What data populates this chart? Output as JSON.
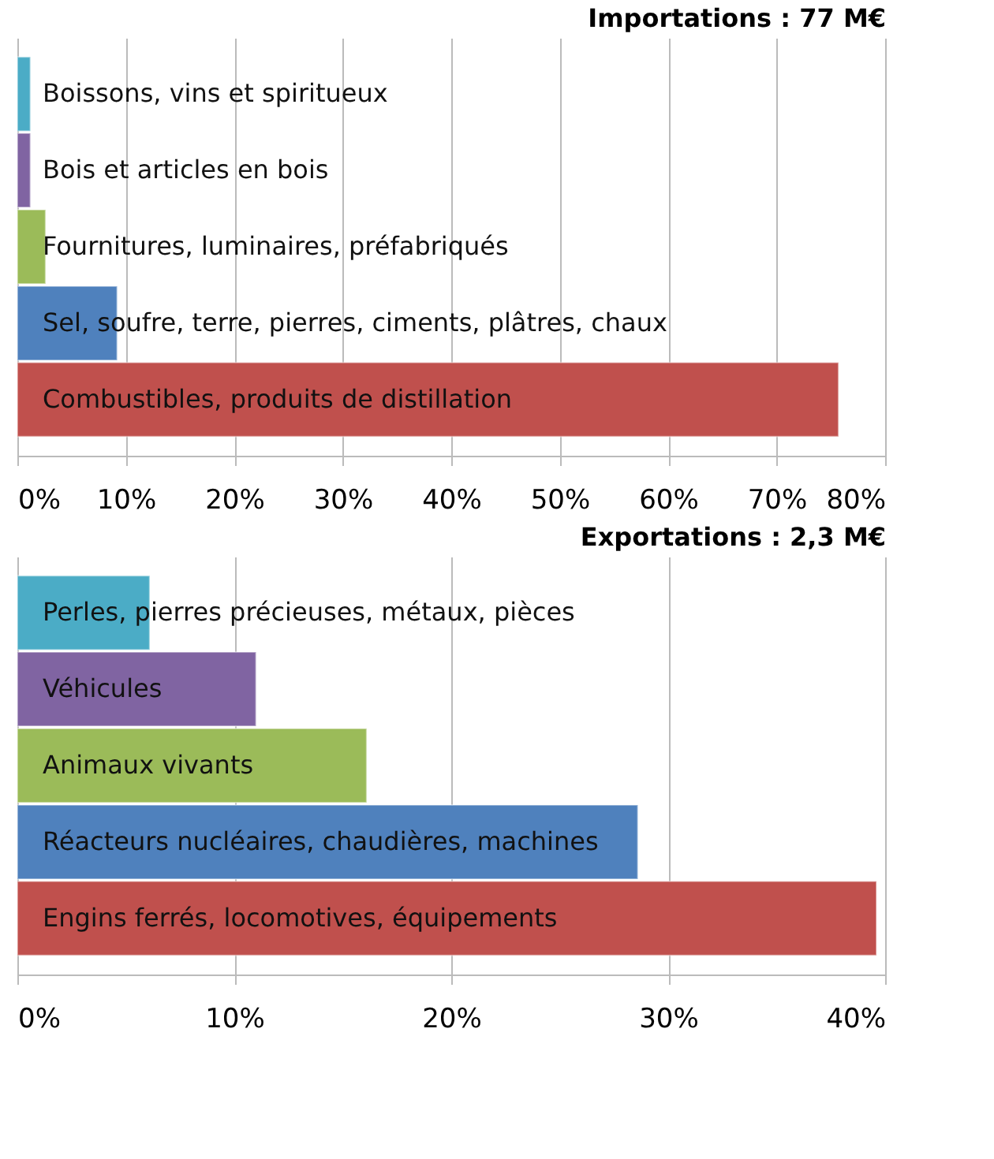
{
  "chart_data": [
    {
      "type": "bar",
      "orientation": "horizontal",
      "title": "Importations : 77 M€",
      "categories": [
        "Boissons, vins et spiritueux",
        "Bois et articles en bois",
        "Fournitures, luminaires, préfabriqués",
        "Sel, soufre, terre, pierres, ciments, plâtres, chaux",
        "Combustibles, produits de distillation"
      ],
      "values": [
        1.2,
        1.2,
        2.6,
        9.2,
        75.7
      ],
      "colors": [
        "#4bacc6",
        "#8064a2",
        "#9bbb59",
        "#4f81bd",
        "#c0504d"
      ],
      "xlim": [
        0,
        80
      ],
      "xticks": [
        {
          "value": 0,
          "label": "0%"
        },
        {
          "value": 10,
          "label": "10%"
        },
        {
          "value": 20,
          "label": "20%"
        },
        {
          "value": 30,
          "label": "30%"
        },
        {
          "value": 40,
          "label": "40%"
        },
        {
          "value": 50,
          "label": "50%"
        },
        {
          "value": 60,
          "label": "60%"
        },
        {
          "value": 70,
          "label": "70%"
        },
        {
          "value": 80,
          "label": "80%"
        }
      ],
      "grid": "x"
    },
    {
      "type": "bar",
      "orientation": "horizontal",
      "title": "Exportations : 2,3 M€",
      "categories": [
        "Perles, pierres précieuses, métaux, pièces",
        "Véhicules",
        "Animaux vivants",
        "Réacteurs nucléaires, chaudières, machines",
        "Engins ferrés, locomotives, équipements"
      ],
      "values": [
        6.1,
        11.0,
        16.1,
        28.6,
        39.6
      ],
      "colors": [
        "#4bacc6",
        "#8064a2",
        "#9bbb59",
        "#4f81bd",
        "#c0504d"
      ],
      "xlim": [
        0,
        40
      ],
      "xticks": [
        {
          "value": 0,
          "label": "0%"
        },
        {
          "value": 10,
          "label": "10%"
        },
        {
          "value": 20,
          "label": "20%"
        },
        {
          "value": 30,
          "label": "30%"
        },
        {
          "value": 40,
          "label": "40%"
        }
      ],
      "grid": "x"
    }
  ]
}
